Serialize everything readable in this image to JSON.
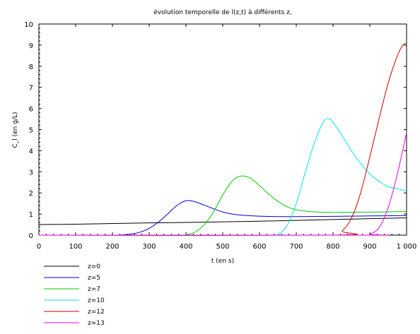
{
  "chart_data": {
    "type": "line",
    "title": "évolution temporelle de l(z,t) à différents z,",
    "xlabel": "t (en s)",
    "ylabel": "C_l (en g/L)",
    "xlim": [
      0,
      1000
    ],
    "ylim": [
      0,
      10
    ],
    "xticks": [
      0,
      100,
      200,
      300,
      400,
      500,
      600,
      700,
      800,
      900,
      1000
    ],
    "xtick_labels": [
      "0",
      "100",
      "200",
      "300",
      "400",
      "500",
      "600",
      "700",
      "800",
      "900",
      "1 000"
    ],
    "yticks": [
      0,
      1,
      2,
      3,
      4,
      5,
      6,
      7,
      8,
      9,
      10
    ],
    "ytick_labels": [
      "0",
      "1",
      "2",
      "3",
      "4",
      "5",
      "6",
      "7",
      "8",
      "9",
      "10"
    ],
    "grid": false,
    "legend_position": "below-left",
    "series": [
      {
        "name": "z=0",
        "color": "#000000",
        "x": [
          0,
          100,
          200,
          300,
          400,
          500,
          600,
          700,
          800,
          900,
          1000
        ],
        "y": [
          0.5,
          0.52,
          0.55,
          0.58,
          0.6,
          0.63,
          0.66,
          0.7,
          0.74,
          0.78,
          0.82
        ]
      },
      {
        "name": "z=5",
        "color": "#0000cc",
        "x": [
          0,
          200,
          225,
          250,
          275,
          300,
          325,
          350,
          375,
          400,
          425,
          450,
          475,
          500,
          525,
          550,
          575,
          600,
          650,
          700,
          800,
          900,
          1000
        ],
        "y": [
          0,
          0,
          0.01,
          0.05,
          0.14,
          0.32,
          0.62,
          1.0,
          1.4,
          1.63,
          1.58,
          1.42,
          1.25,
          1.1,
          1.0,
          0.95,
          0.92,
          0.9,
          0.88,
          0.88,
          0.89,
          0.91,
          0.93
        ]
      },
      {
        "name": "z=7",
        "color": "#00cc00",
        "x": [
          0,
          380,
          400,
          425,
          450,
          475,
          500,
          525,
          550,
          575,
          600,
          625,
          650,
          675,
          700,
          750,
          800,
          900,
          1000
        ],
        "y": [
          0,
          0,
          0.02,
          0.15,
          0.5,
          1.1,
          1.9,
          2.55,
          2.8,
          2.7,
          2.35,
          1.95,
          1.6,
          1.35,
          1.2,
          1.1,
          1.08,
          1.09,
          1.12
        ]
      },
      {
        "name": "z=10",
        "color": "#00e5e5",
        "x": [
          0,
          620,
          650,
          675,
          700,
          725,
          750,
          775,
          790,
          800,
          825,
          850,
          875,
          900,
          925,
          950,
          975,
          1000
        ],
        "y": [
          0,
          0,
          0.05,
          0.45,
          1.5,
          3.0,
          4.4,
          5.4,
          5.5,
          5.35,
          4.7,
          4.0,
          3.4,
          2.9,
          2.55,
          2.3,
          2.2,
          2.1
        ]
      },
      {
        "name": "z=12",
        "color": "#cc0000",
        "x": [
          0,
          800,
          825,
          850,
          875,
          900,
          925,
          950,
          975,
          990,
          1000
        ],
        "y": [
          0,
          0,
          0.2,
          0.8,
          2.0,
          3.7,
          5.5,
          7.2,
          8.5,
          9.0,
          9.1
        ]
      },
      {
        "name": "z=13",
        "color": "#e500e5",
        "x": [
          0,
          880,
          900,
          925,
          950,
          975,
          1000
        ],
        "y": [
          0,
          0,
          0.05,
          0.35,
          1.3,
          2.9,
          4.85
        ]
      }
    ]
  }
}
